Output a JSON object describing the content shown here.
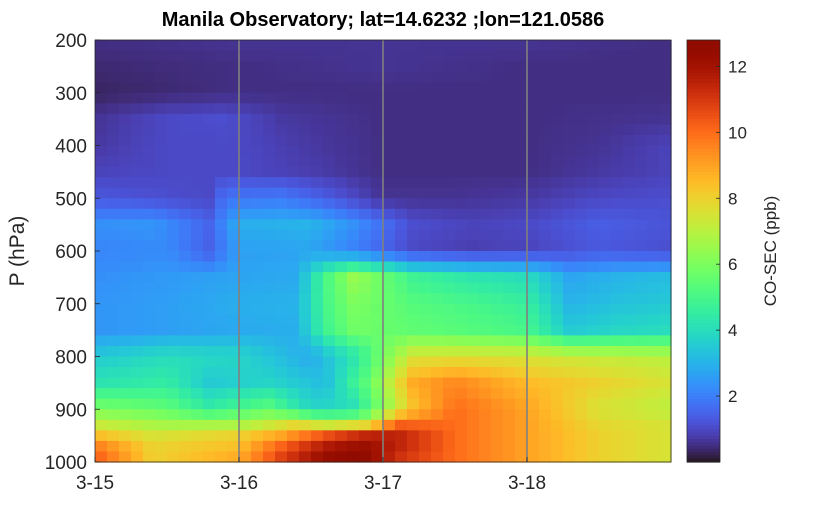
{
  "chart_data": {
    "type": "heatmap",
    "title": "Manila Observatory; lat=14.6232 ;lon=121.0586",
    "xlabel": "",
    "ylabel": "P (hPa)",
    "x_tick_labels": [
      "3-15",
      "3-16",
      "3-17",
      "3-18"
    ],
    "x_range_days": [
      "3-15 00:00",
      "3-18 23:00"
    ],
    "y_tick_values": [
      200,
      300,
      400,
      500,
      600,
      700,
      800,
      900,
      1000
    ],
    "ylim": [
      200,
      1000
    ],
    "y_reversed": true,
    "colorbar": {
      "label": "CO-SEC (ppb)",
      "ticks": [
        2,
        4,
        6,
        8,
        10,
        12
      ],
      "range": [
        0,
        12.8
      ],
      "colormap": "turbo"
    },
    "vertical_grid_at": [
      "3-16",
      "3-17",
      "3-18"
    ],
    "grid_color": "#808080",
    "levels_hPa": [
      200,
      250,
      300,
      350,
      400,
      450,
      500,
      550,
      600,
      650,
      700,
      750,
      800,
      850,
      900,
      925,
      950,
      975,
      1000
    ],
    "level_profiles": [
      {
        "p": 200,
        "t": [
          0,
          1,
          2,
          3,
          3.99
        ],
        "v": [
          0.5,
          0.6,
          0.6,
          0.6,
          0.5
        ]
      },
      {
        "p": 250,
        "t": [
          0,
          1,
          2,
          3,
          3.99
        ],
        "v": [
          0.4,
          0.5,
          0.6,
          0.5,
          0.5
        ]
      },
      {
        "p": 300,
        "t": [
          0,
          1,
          2,
          3,
          3.99
        ],
        "v": [
          0.3,
          0.5,
          0.5,
          0.5,
          0.5
        ]
      },
      {
        "p": 350,
        "t": [
          0,
          0.5,
          0.9,
          1.3,
          2,
          3,
          3.99
        ],
        "v": [
          0.6,
          1.0,
          1.1,
          0.7,
          0.5,
          0.5,
          0.6
        ]
      },
      {
        "p": 400,
        "t": [
          0,
          0.5,
          1,
          1.5,
          2,
          3,
          3.5,
          3.99
        ],
        "v": [
          0.7,
          1.0,
          1.0,
          0.7,
          0.5,
          0.5,
          0.6,
          0.9
        ]
      },
      {
        "p": 450,
        "t": [
          0,
          0.5,
          1,
          1.5,
          2,
          3,
          3.5,
          3.99
        ],
        "v": [
          0.9,
          1.0,
          1.0,
          0.8,
          0.5,
          0.5,
          0.7,
          0.9
        ]
      },
      {
        "p": 500,
        "t": [
          0,
          0.5,
          0.8,
          0.9,
          1.3,
          1.7,
          2,
          2.5,
          3,
          3.5,
          3.99
        ],
        "v": [
          1.3,
          1.1,
          1.0,
          1.8,
          1.9,
          1.2,
          0.6,
          0.6,
          0.7,
          1.0,
          1.1
        ]
      },
      {
        "p": 550,
        "t": [
          0,
          0.4,
          0.8,
          1.0,
          1.5,
          1.8,
          2.2,
          2.6,
          3,
          3.5,
          3.99
        ],
        "v": [
          2.3,
          2.4,
          1.5,
          2.9,
          3.0,
          2.3,
          1.1,
          0.9,
          1.0,
          1.4,
          1.2
        ]
      },
      {
        "p": 600,
        "t": [
          0,
          0.5,
          0.8,
          1.0,
          1.5,
          1.8,
          2.2,
          2.6,
          3,
          3.5,
          3.99
        ],
        "v": [
          2.1,
          2.2,
          1.4,
          2.6,
          2.7,
          2.0,
          1.0,
          0.8,
          0.9,
          1.3,
          1.1
        ]
      },
      {
        "p": 650,
        "t": [
          0,
          0.5,
          1,
          1.4,
          1.6,
          1.8,
          2.2,
          2.6,
          3,
          3.3,
          3.6,
          3.99
        ],
        "v": [
          2.3,
          2.5,
          2.7,
          2.8,
          5.0,
          6.5,
          4.8,
          4.3,
          4.0,
          2.7,
          3.0,
          3.2
        ]
      },
      {
        "p": 700,
        "t": [
          0,
          0.5,
          1,
          1.4,
          1.6,
          1.8,
          2.2,
          2.6,
          3,
          3.3,
          3.6,
          3.99
        ],
        "v": [
          2.4,
          2.6,
          2.9,
          3.0,
          5.0,
          6.0,
          5.3,
          5.0,
          4.6,
          3.0,
          3.3,
          3.5
        ]
      },
      {
        "p": 750,
        "t": [
          0,
          0.5,
          1,
          1.4,
          1.6,
          1.8,
          2.2,
          2.6,
          3,
          3.3,
          3.6,
          3.99
        ],
        "v": [
          2.4,
          2.6,
          2.8,
          2.9,
          4.8,
          5.8,
          5.5,
          5.3,
          5.0,
          3.5,
          3.8,
          4.0
        ]
      },
      {
        "p": 800,
        "t": [
          0,
          0.5,
          1,
          1.5,
          1.8,
          2.2,
          2.5,
          3,
          3.5,
          3.99
        ],
        "v": [
          3.5,
          4.0,
          3.8,
          2.8,
          4.2,
          7.5,
          7.6,
          7.5,
          7.2,
          7.0
        ]
      },
      {
        "p": 850,
        "t": [
          0,
          0.5,
          0.8,
          1.2,
          1.6,
          1.9,
          2.2,
          2.5,
          3,
          3.5,
          3.99
        ],
        "v": [
          4.2,
          4.5,
          3.5,
          3.8,
          3.2,
          5.5,
          8.8,
          9.5,
          8.5,
          8.0,
          7.5
        ]
      },
      {
        "p": 900,
        "t": [
          0,
          0.5,
          0.8,
          1.2,
          1.5,
          1.8,
          2.2,
          2.5,
          3,
          3.5,
          3.99
        ],
        "v": [
          6.0,
          5.5,
          4.5,
          5.5,
          3.8,
          4.0,
          8.2,
          10.0,
          9.0,
          7.5,
          7.0
        ]
      },
      {
        "p": 925,
        "t": [
          0,
          0.5,
          1,
          1.4,
          1.6,
          1.9,
          2.1,
          2.5,
          3,
          3.5,
          3.99
        ],
        "v": [
          7.0,
          6.5,
          6.5,
          7.5,
          6.5,
          7.0,
          10.0,
          10.0,
          9.0,
          7.8,
          7.5
        ]
      },
      {
        "p": 950,
        "t": [
          0,
          0.4,
          1,
          1.3,
          1.6,
          1.9,
          2.1,
          2.5,
          3,
          3.5,
          3.99
        ],
        "v": [
          8.5,
          7.5,
          8.0,
          9.0,
          10.5,
          11.5,
          11.5,
          10.0,
          9.0,
          8.0,
          7.5
        ]
      },
      {
        "p": 975,
        "t": [
          0,
          0.4,
          1,
          1.3,
          1.6,
          1.85,
          2.1,
          2.5,
          3,
          3.5,
          3.99
        ],
        "v": [
          10.0,
          8.0,
          8.5,
          10.5,
          12.0,
          12.5,
          11.5,
          10.0,
          9.0,
          8.0,
          7.5
        ]
      },
      {
        "p": 1000,
        "t": [
          0,
          0.4,
          1,
          1.3,
          1.6,
          1.85,
          2.1,
          2.5,
          3,
          3.5,
          3.99
        ],
        "v": [
          10.5,
          8.0,
          9.0,
          11.0,
          12.5,
          12.8,
          11.0,
          10.0,
          9.0,
          8.0,
          7.5
        ]
      }
    ]
  }
}
